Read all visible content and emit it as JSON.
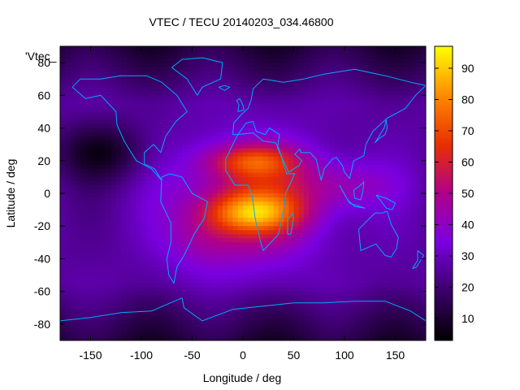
{
  "chart_data": {
    "type": "heatmap",
    "title": "VTEC / TECU 20140203_034.46800",
    "xlabel": "Longitude / deg",
    "ylabel": "Latitude / deg",
    "key_label": "'Vtec_",
    "xlim": [
      -180,
      180
    ],
    "ylim": [
      -90,
      90
    ],
    "xticks": [
      -150,
      -100,
      -50,
      0,
      50,
      100,
      150
    ],
    "xtick_labels": [
      "-150",
      "-100",
      "-50",
      "0",
      "50",
      "100",
      "150"
    ],
    "yticks": [
      -80,
      -60,
      -40,
      -20,
      0,
      20,
      40,
      60,
      80
    ],
    "ytick_labels": [
      "-80",
      "-60",
      "-40",
      "-20",
      "0",
      "20",
      "40",
      "60",
      "80"
    ],
    "colorbar": {
      "range": [
        3,
        97
      ],
      "ticks": [
        10,
        20,
        30,
        40,
        50,
        60,
        70,
        80,
        90
      ],
      "tick_labels": [
        "10",
        "20",
        "30",
        "40",
        "50",
        "60",
        "70",
        "80",
        "90"
      ],
      "palette": [
        "#000000",
        "#3a0068",
        "#7a00e0",
        "#b0008a",
        "#e83000",
        "#ff8a00",
        "#ffff00"
      ]
    },
    "field": {
      "background": 26,
      "peaks": [
        {
          "lon": 25,
          "lat": -12,
          "value": 95
        },
        {
          "lon": 15,
          "lat": 22,
          "value": 90
        },
        {
          "lon": 20,
          "lat": 5,
          "value": 82
        }
      ]
    },
    "overlay": "coastlines",
    "colors": {
      "coastline": "#00aaff",
      "frame": "#000000"
    }
  }
}
